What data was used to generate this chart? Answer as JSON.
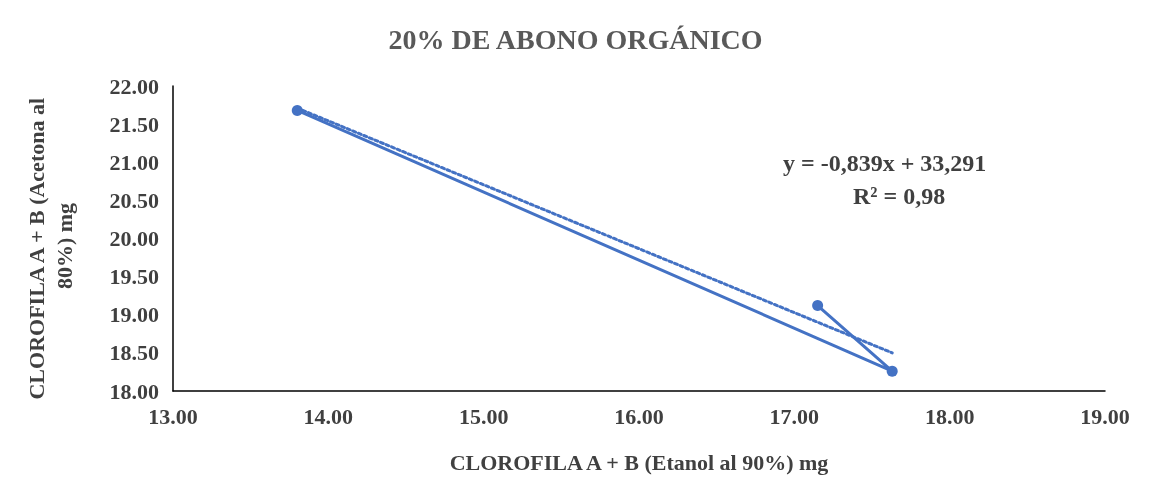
{
  "chart_data": {
    "type": "line",
    "title": "20% DE ABONO ORGÁNICO",
    "xlabel": "CLOROFILA A + B (Etanol al 90%) mg",
    "ylabel": "CLOROFILA A + B (Acetona al 80%) mg",
    "xlim": [
      13,
      19
    ],
    "xticks": [
      {
        "value": 13,
        "label": "13.00"
      },
      {
        "value": 14,
        "label": "14.00"
      },
      {
        "value": 15,
        "label": "15.00"
      },
      {
        "value": 16,
        "label": "16.00"
      },
      {
        "value": 17,
        "label": "17.00"
      },
      {
        "value": 18,
        "label": "18.00"
      },
      {
        "value": 19,
        "label": "19.00"
      }
    ],
    "ylim": [
      18,
      22
    ],
    "yticks": [
      {
        "value": 18,
        "label": "18.00"
      },
      {
        "value": 18.5,
        "label": "18.50"
      },
      {
        "value": 19,
        "label": "19.00"
      },
      {
        "value": 19.5,
        "label": "19.50"
      },
      {
        "value": 20,
        "label": "20.00"
      },
      {
        "value": 20.5,
        "label": "20.50"
      },
      {
        "value": 21,
        "label": "21.00"
      },
      {
        "value": 21.5,
        "label": "21.50"
      },
      {
        "value": 22,
        "label": "22.00"
      }
    ],
    "grid": false,
    "series": [
      {
        "color": "#4472c4",
        "marker": "circle",
        "line_style": "solid",
        "x": [
          13.8,
          17.63,
          17.15
        ],
        "values": [
          21.68,
          18.26,
          19.12
        ]
      },
      {
        "color": "#4472c4",
        "marker": "none",
        "line_style": "dotted",
        "x": [
          13.8,
          17.63
        ],
        "values": [
          21.71,
          18.5
        ]
      }
    ],
    "annotations": [
      "y = -0,839x + 33,291",
      "R² = 0,98"
    ]
  }
}
